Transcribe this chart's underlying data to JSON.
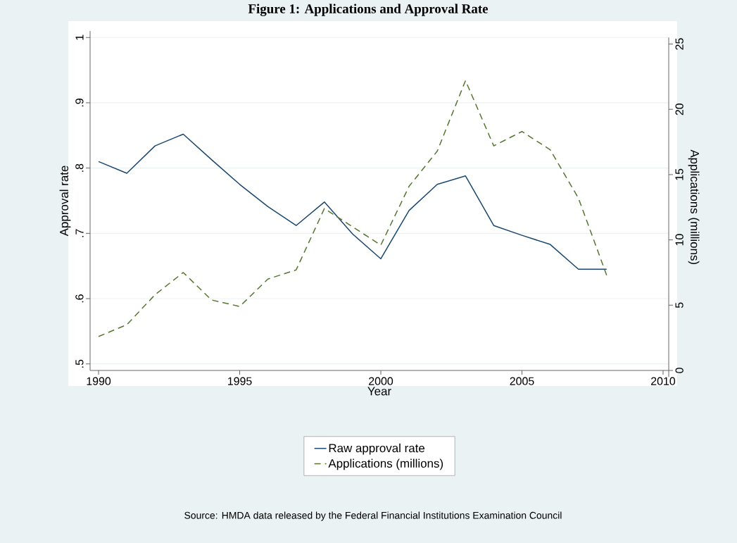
{
  "chart_data": {
    "type": "line",
    "title": "Figure 1: Applications and Approval Rate",
    "xlabel": "Year",
    "ylabel": "Approval rate",
    "y2label": "Applications (millions)",
    "x": [
      1990,
      1991,
      1992,
      1993,
      1994,
      1995,
      1996,
      1997,
      1998,
      1999,
      2000,
      2001,
      2002,
      2003,
      2004,
      2005,
      2006,
      2007,
      2008
    ],
    "series": [
      {
        "name": "Raw approval rate",
        "color": "#1a476f",
        "line_style": "solid",
        "values": [
          0.81,
          0.792,
          0.834,
          0.852,
          0.813,
          0.775,
          0.741,
          0.712,
          0.748,
          0.699,
          0.661,
          0.735,
          0.775,
          0.788,
          0.712,
          0.697,
          0.683,
          0.645,
          0.645
        ]
      },
      {
        "name": "Applications (millions)",
        "color": "#55752f",
        "line_style": "dashed",
        "axis": "y2",
        "values": [
          2.6,
          3.5,
          5.8,
          7.5,
          5.4,
          4.9,
          7.0,
          7.7,
          12.4,
          11.0,
          9.6,
          14.1,
          16.8,
          22.2,
          17.2,
          18.3,
          16.9,
          13.2,
          7.3
        ]
      }
    ],
    "xlim": [
      1989.7,
      2010.2
    ],
    "xticks": [
      1990,
      1995,
      2000,
      2005,
      2010
    ],
    "ylim": [
      0.49,
      1.01
    ],
    "yticks": [
      {
        "value": 0.5,
        "label": ".5"
      },
      {
        "value": 0.6,
        "label": ".6"
      },
      {
        "value": 0.7,
        "label": ".7"
      },
      {
        "value": 0.8,
        "label": ".8"
      },
      {
        "value": 0.9,
        "label": ".9"
      },
      1
    ],
    "y2lim": [
      -0.5,
      25.5
    ],
    "y2ticks": [
      0,
      5,
      10,
      15,
      20,
      25
    ],
    "grid": "y",
    "legend": "bottom",
    "annotations": [
      "Source: HMDA data released by the Federal Financial Institutions Examination Council"
    ]
  }
}
